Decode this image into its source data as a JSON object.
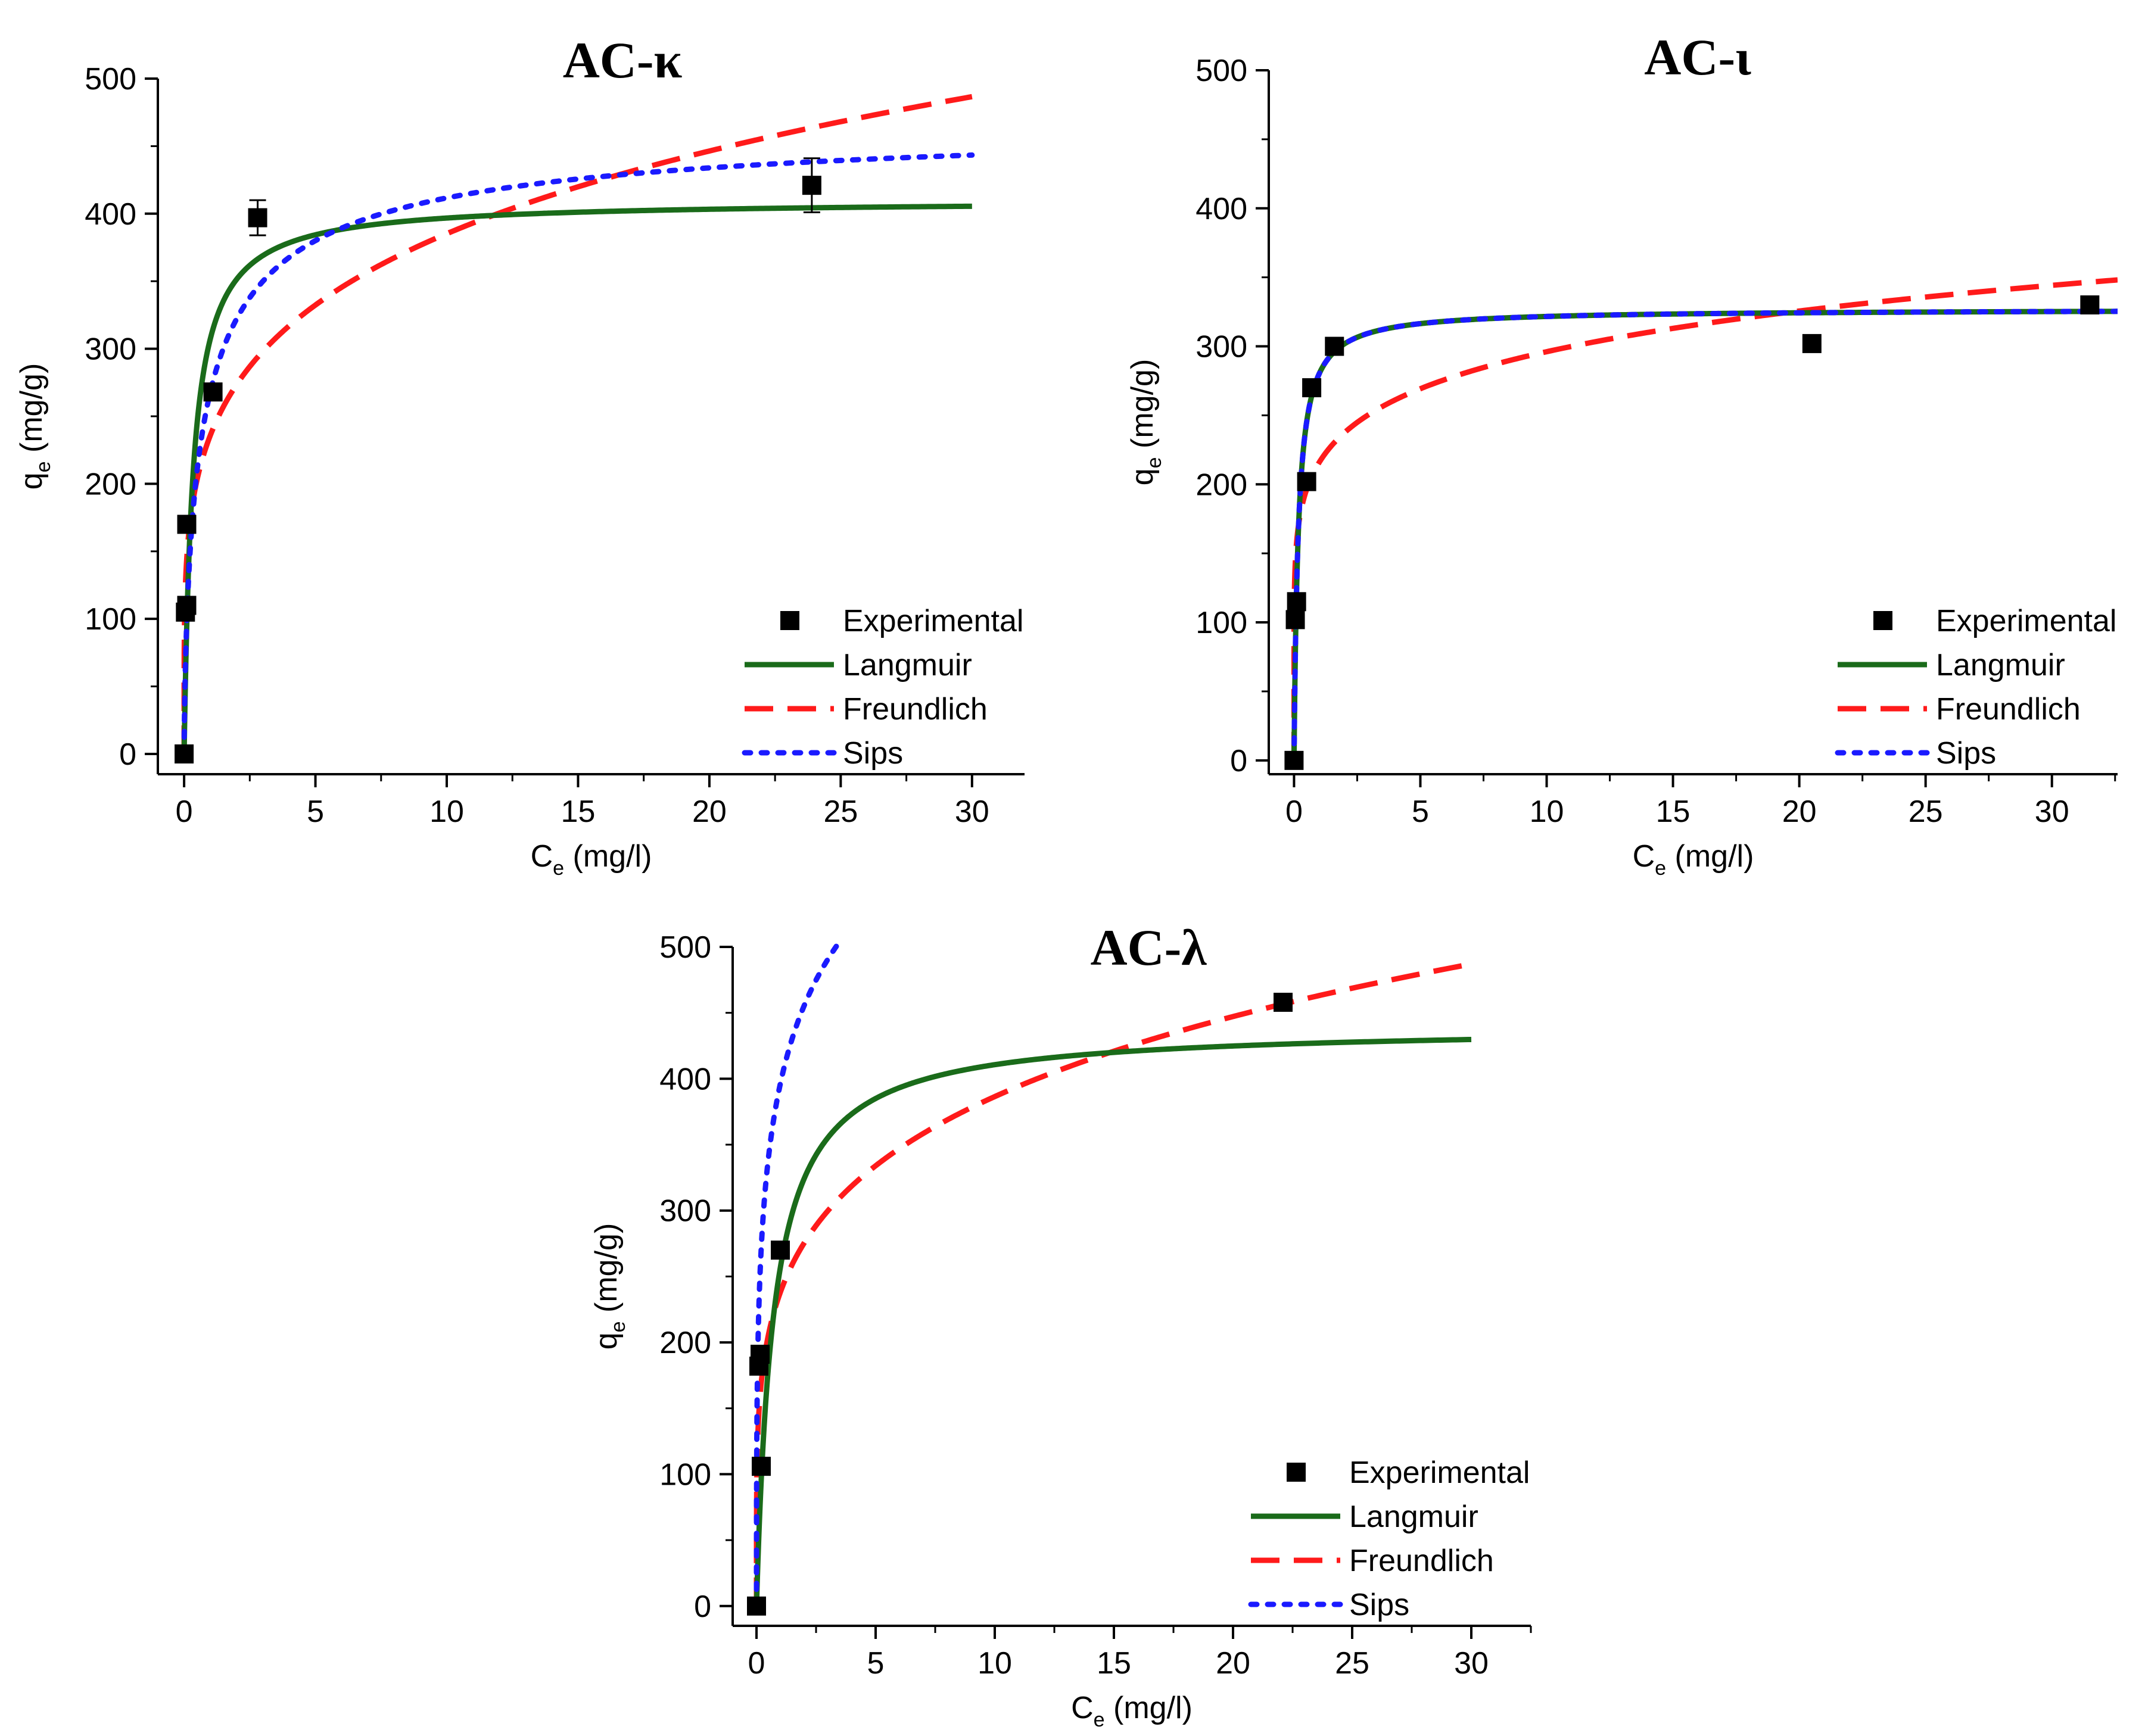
{
  "colors": {
    "axis": "#000000",
    "experimental": "#000000",
    "langmuir": "#1a6b1a",
    "freundlich": "#ff1a1a",
    "sips": "#1a1aff"
  },
  "legend_labels": {
    "experimental": "Experimental",
    "langmuir": "Langmuir",
    "freundlich": "Freundlich",
    "sips": "Sips"
  },
  "chart_data": [
    {
      "type": "scatter",
      "title": "AC-κ",
      "xlabel_main": "C",
      "xlabel_sub": "e",
      "xlabel_unit": " (mg/l)",
      "ylabel_main": "q",
      "ylabel_sub": "e",
      "ylabel_unit": " (mg/g)",
      "xlim": [
        -1,
        32
      ],
      "ylim": [
        -15,
        500
      ],
      "xticks": [
        0,
        5,
        10,
        15,
        20,
        25,
        30
      ],
      "yticks": [
        0,
        100,
        200,
        300,
        400,
        500
      ],
      "legend_position": "bottom-right",
      "experimental": {
        "x": [
          0.0,
          0.05,
          0.1,
          0.1,
          1.1,
          2.8,
          23.9
        ],
        "y": [
          0,
          105,
          110,
          170,
          268,
          397,
          421
        ],
        "yerr": [
          0,
          0,
          0,
          0,
          0,
          13,
          20
        ]
      },
      "models": {
        "langmuir": {
          "qmax": 410,
          "KL": 3.0
        },
        "freundlich": {
          "KF": 236,
          "n": 4.7
        },
        "sips": {
          "qm": 475,
          "Ks": 1.45,
          "n": 0.7
        }
      },
      "curve_xmax": 30
    },
    {
      "type": "scatter",
      "title": "AC-ι",
      "xlabel_main": "C",
      "xlabel_sub": "e",
      "xlabel_unit": " (mg/l)",
      "ylabel_main": "q",
      "ylabel_sub": "e",
      "ylabel_unit": " (mg/g)",
      "xlim": [
        -1,
        32.6
      ],
      "ylim": [
        -10,
        500
      ],
      "xticks": [
        0,
        5,
        10,
        15,
        20,
        25,
        30
      ],
      "yticks": [
        0,
        100,
        200,
        300,
        400,
        500
      ],
      "legend_position": "bottom-right",
      "experimental": {
        "x": [
          0.0,
          0.05,
          0.1,
          0.5,
          0.7,
          1.6,
          20.5,
          31.5
        ],
        "y": [
          0,
          102,
          115,
          202,
          270,
          300,
          302,
          330
        ]
      },
      "models": {
        "langmuir": {
          "qmax": 327,
          "KL": 6.0
        },
        "freundlich": {
          "KF": 216,
          "n": 7.3
        },
        "sips": {
          "qm": 327,
          "Ks": 6.0,
          "n": 1.0
        }
      },
      "curve_xmax": 32.6
    },
    {
      "type": "scatter",
      "title": "AC-λ",
      "xlabel_main": "C",
      "xlabel_sub": "e",
      "xlabel_unit": " (mg/l)",
      "ylabel_main": "q",
      "ylabel_sub": "e",
      "ylabel_unit": " (mg/g)",
      "xlim": [
        -1,
        32.5
      ],
      "ylim": [
        -15,
        500
      ],
      "xticks": [
        0,
        5,
        10,
        15,
        20,
        25,
        30
      ],
      "yticks": [
        0,
        100,
        200,
        300,
        400,
        500
      ],
      "legend_position": "bottom-right",
      "experimental": {
        "x": [
          0.0,
          0.1,
          0.15,
          0.2,
          1.0,
          22.1
        ],
        "y": [
          0,
          182,
          191,
          106,
          270,
          458
        ]
      },
      "models": {
        "langmuir": {
          "qmax": 440,
          "KL": 1.4
        },
        "freundlich": {
          "KF": 238,
          "n": 4.75
        },
        "sips": {
          "qm": 1000,
          "Ks": 0.3,
          "n": 0.35
        }
      },
      "curve_xmax": 30
    }
  ]
}
